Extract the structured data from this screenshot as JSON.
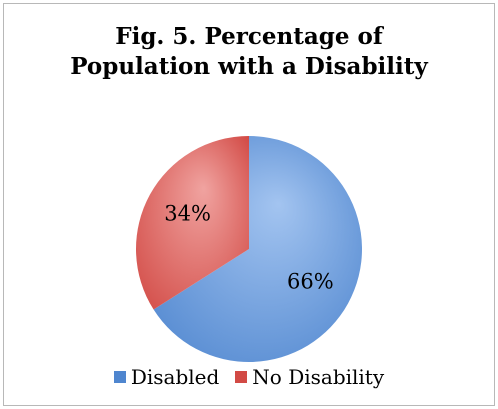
{
  "chart_data": {
    "type": "pie",
    "title_lines": [
      "Fig. 5. Percentage of",
      "Population with a Disability"
    ],
    "slices": [
      {
        "name": "Disabled",
        "value": 66,
        "label": "66%",
        "color": "#4f86cf",
        "color_light": "#a3c4f0"
      },
      {
        "name": "No Disability",
        "value": 34,
        "label": "34%",
        "color": "#d24a45",
        "color_light": "#f0a3a0"
      }
    ],
    "start_angle": "12 o'clock",
    "direction": "clockwise",
    "legend_position": "bottom"
  }
}
